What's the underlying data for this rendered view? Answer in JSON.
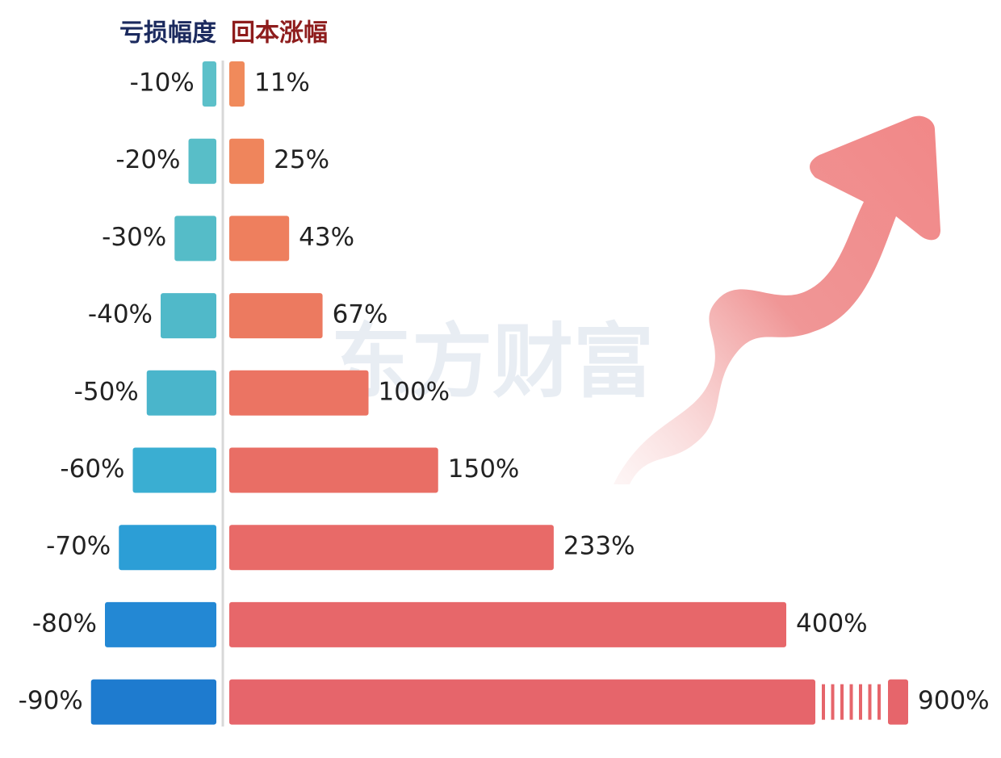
{
  "chart_data": {
    "type": "butterfly",
    "watermark": "东方财富",
    "series": [
      {
        "name": "亏损幅度",
        "legend_color": "#1b2a5e",
        "colors": [
          "#5cc0c9",
          "#58bec8",
          "#55bcc8",
          "#50b9c9",
          "#4ab5cb",
          "#3aaed2",
          "#2c9ed6",
          "#2388d4",
          "#1e7bcf"
        ],
        "values": [
          -10,
          -20,
          -30,
          -40,
          -50,
          -60,
          -70,
          -80,
          -90
        ],
        "value_labels": [
          "-10%",
          "-20%",
          "-30%",
          "-40%",
          "-50%",
          "-60%",
          "-70%",
          "-80%",
          "-90%"
        ]
      },
      {
        "name": "回本涨幅",
        "legend_color": "#8e1c1c",
        "colors": [
          "#f08a5b",
          "#ef855c",
          "#ee7f5e",
          "#ec7a60",
          "#eb7463",
          "#e96e65",
          "#e86a68",
          "#e7676a",
          "#e6656b"
        ],
        "values": [
          11,
          25,
          43,
          67,
          100,
          150,
          233,
          400,
          900
        ],
        "value_labels": [
          "11%",
          "25%",
          "43%",
          "67%",
          "100%",
          "150%",
          "233%",
          "400%",
          "900%"
        ]
      }
    ]
  }
}
